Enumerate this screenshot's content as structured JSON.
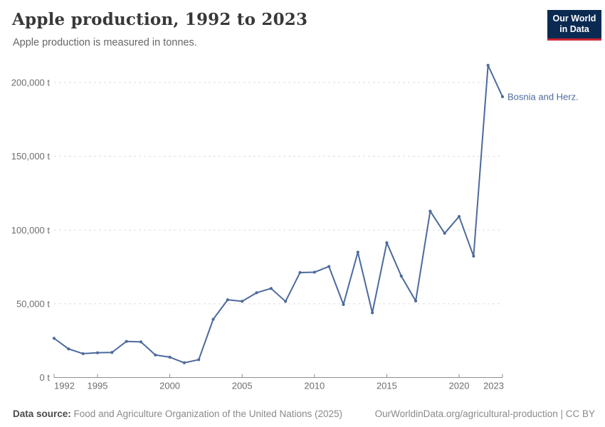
{
  "header": {
    "title": "Apple production, 1992 to 2023",
    "subtitle": "Apple production is measured in tonnes.",
    "logo": {
      "line1": "Our World",
      "line2": "in Data"
    }
  },
  "chart_data": {
    "type": "line",
    "title": "Apple production, 1992 to 2023",
    "xlabel": "",
    "ylabel": "tonnes",
    "xlim": [
      1992,
      2023
    ],
    "ylim": [
      0,
      200000
    ],
    "grid": "horizontal-dashed",
    "legend_position": "end-of-line-label",
    "x_ticks": [
      1992,
      1995,
      2000,
      2005,
      2010,
      2015,
      2020,
      2023
    ],
    "y_ticks": {
      "values": [
        0,
        50000,
        100000,
        150000,
        200000
      ],
      "labels": [
        "0 t",
        "50,000 t",
        "100,000 t",
        "150,000 t",
        "200,000 t"
      ]
    },
    "series": [
      {
        "name": "Bosnia and Herz.",
        "x": [
          1992,
          1993,
          1994,
          1995,
          1996,
          1997,
          1998,
          1999,
          2000,
          2001,
          2002,
          2003,
          2004,
          2005,
          2006,
          2007,
          2008,
          2009,
          2010,
          2011,
          2012,
          2013,
          2014,
          2015,
          2016,
          2017,
          2018,
          2019,
          2020,
          2021,
          2022,
          2023
        ],
        "values": [
          26600,
          19400,
          16200,
          16800,
          17000,
          24500,
          24200,
          15300,
          13800,
          10000,
          12100,
          39500,
          52700,
          51700,
          57500,
          60400,
          51600,
          71200,
          71400,
          75300,
          49500,
          85000,
          43900,
          91400,
          68800,
          51900,
          112800,
          97800,
          109200,
          82300,
          211700,
          190400
        ]
      }
    ]
  },
  "footer": {
    "source_label": "Data source:",
    "source_text": "Food and Agriculture Organization of the United Nations (2025)",
    "credit": "OurWorldinData.org/agricultural-production | CC BY"
  },
  "colors": {
    "line": "#4C6A9C",
    "end_label_text": "#4C6A9C",
    "grid": "#DDDDDD",
    "axis": "#8F8F8F",
    "tick_text": "#6E6E6E",
    "title_text": "#383838",
    "subtitle_text": "#666666",
    "logo_bg": "#0B2A51",
    "logo_red": "#CB2535"
  }
}
